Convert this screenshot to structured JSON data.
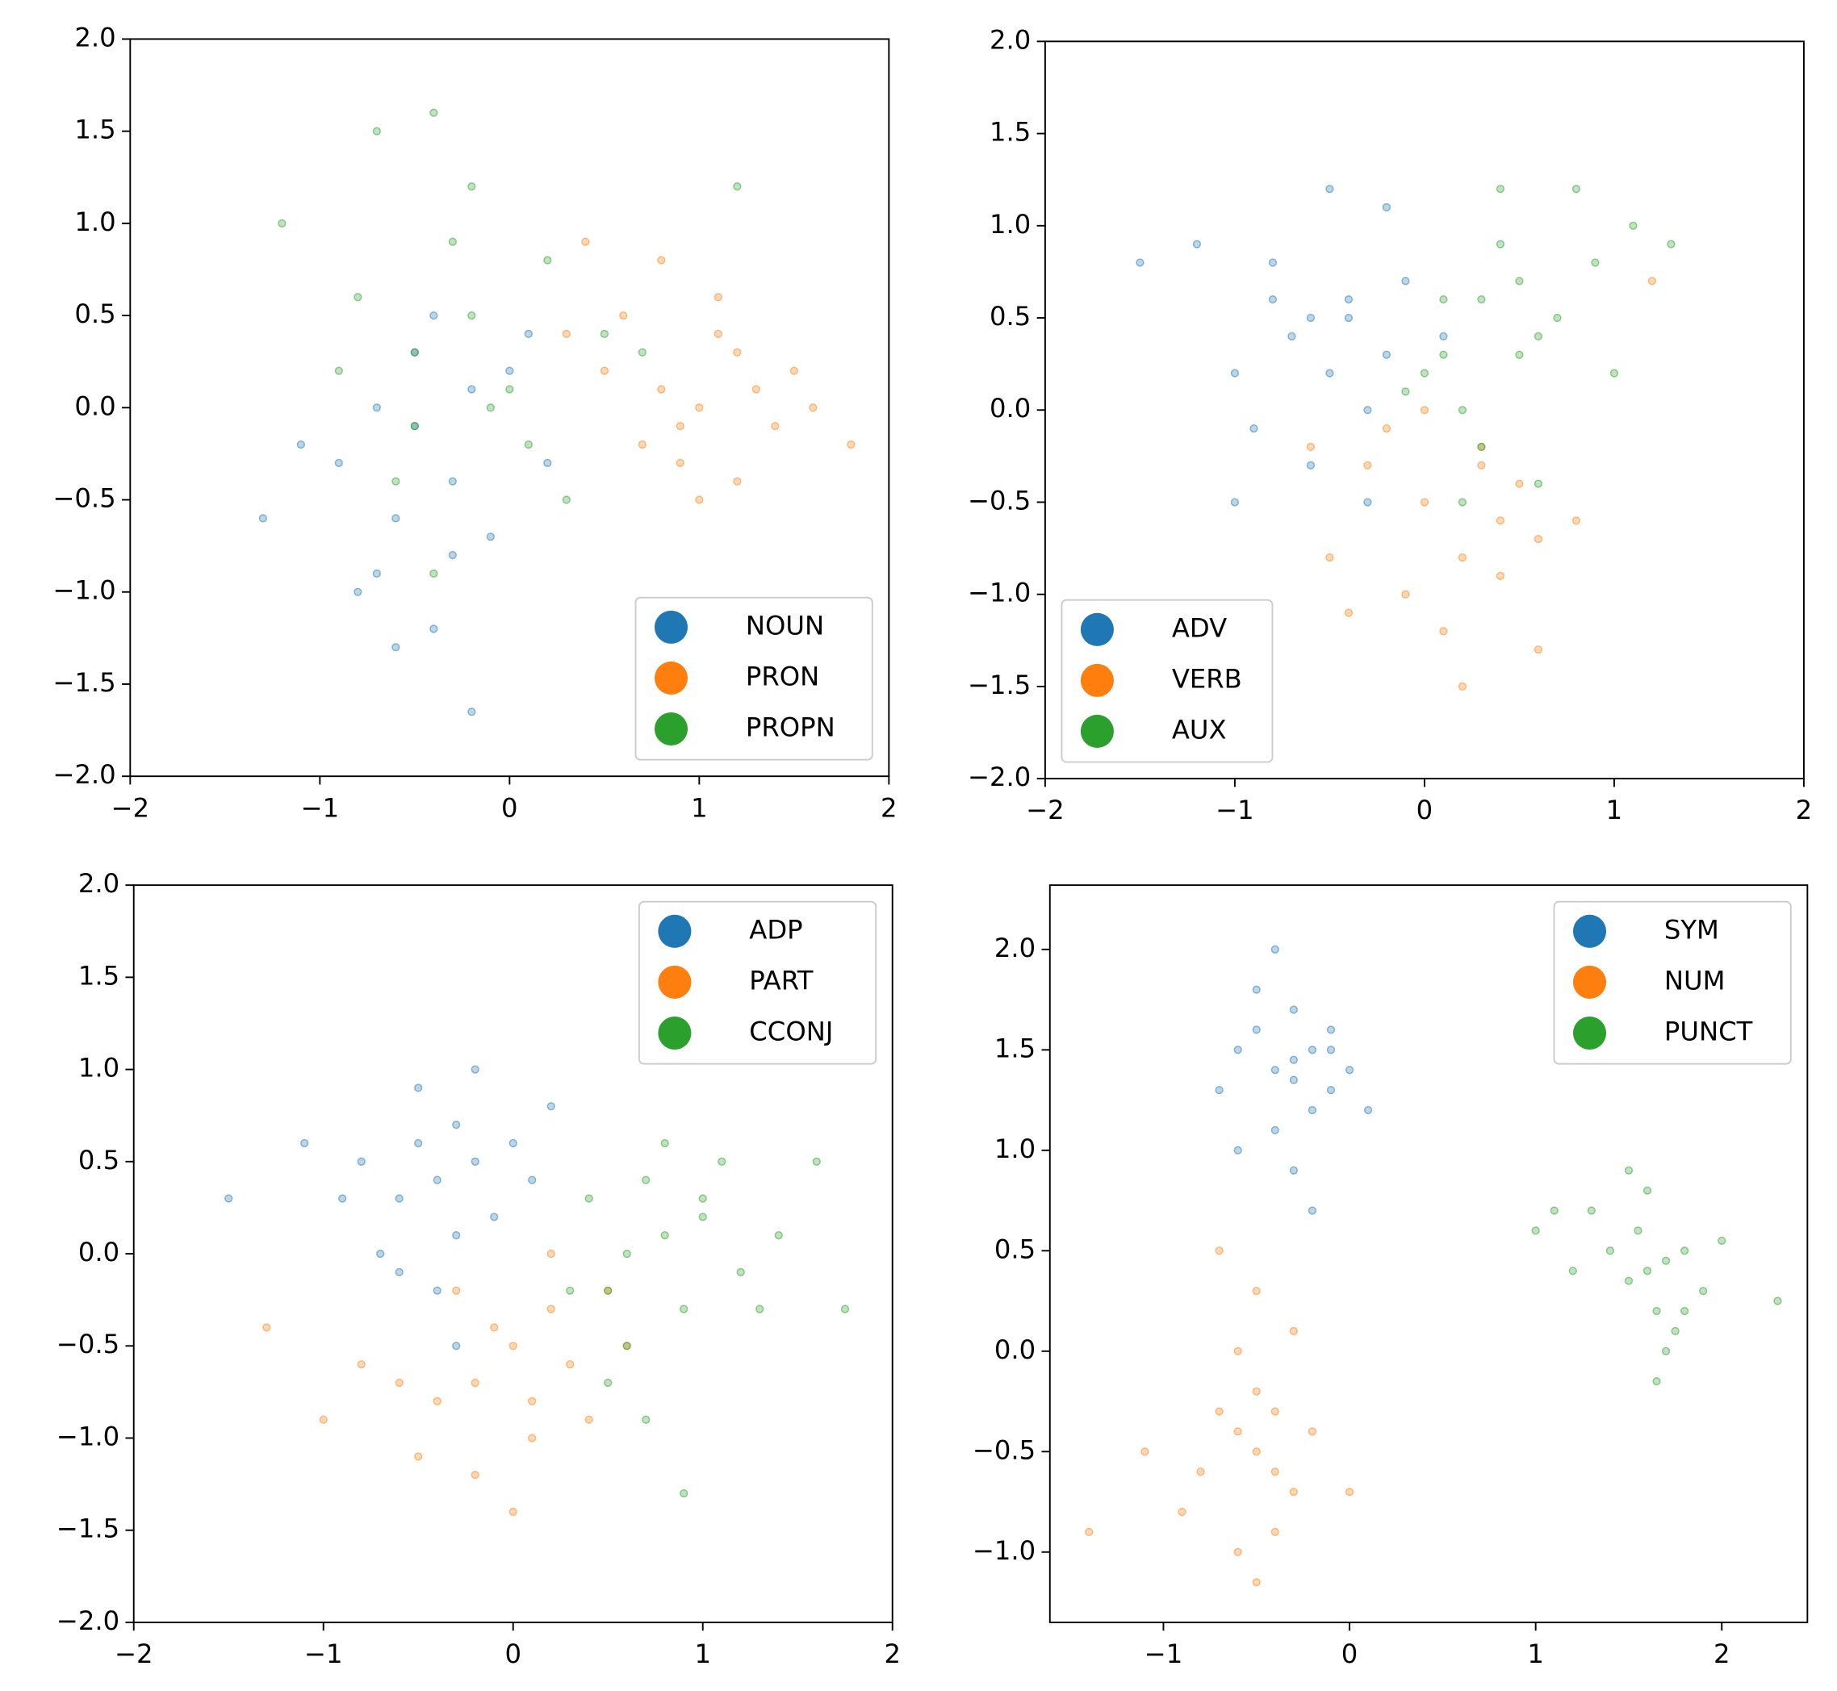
{
  "chart_data": [
    {
      "type": "scatter",
      "legend_loc": "lower right",
      "xlim": [
        -2,
        2
      ],
      "ylim": [
        -2,
        2
      ],
      "xticks": [
        {
          "value": -2,
          "label": "−2"
        },
        {
          "value": -1,
          "label": "−1"
        },
        0,
        1,
        2
      ],
      "yticks": [
        {
          "value": -2,
          "label": "−2.0"
        },
        {
          "value": -1.5,
          "label": "−1.5"
        },
        {
          "value": -1,
          "label": "−1.0"
        },
        {
          "value": -0.5,
          "label": "−0.5"
        },
        {
          "value": 0,
          "label": "0.0"
        },
        0.5,
        {
          "value": 1,
          "label": "1.0"
        },
        1.5,
        {
          "value": 2,
          "label": "2.0"
        }
      ],
      "series": [
        {
          "name": "NOUN",
          "color": "#1f77b4",
          "x": [
            -0.9,
            -0.6,
            -0.4,
            -0.2,
            -0.7,
            -0.3,
            0.0,
            -0.5,
            -1.1,
            -0.8,
            -0.1,
            -0.4,
            -0.6,
            0.2,
            -0.3,
            -1.3,
            -0.5,
            -0.2,
            0.1,
            -0.7
          ],
          "values": [
            -0.3,
            -0.6,
            -1.2,
            0.1,
            -0.9,
            -0.4,
            0.2,
            0.3,
            -0.2,
            -1.0,
            -0.7,
            0.5,
            -1.3,
            -0.3,
            -0.8,
            -0.6,
            -0.1,
            -1.65,
            0.4,
            0.0
          ]
        },
        {
          "name": "PRON",
          "color": "#ff7f0e",
          "x": [
            0.5,
            0.8,
            1.0,
            1.2,
            1.4,
            0.9,
            0.6,
            1.1,
            1.3,
            0.7,
            1.6,
            1.8,
            0.4,
            1.0,
            0.8,
            1.2,
            0.3,
            1.5,
            0.9,
            1.1
          ],
          "values": [
            0.2,
            0.1,
            0.0,
            0.3,
            -0.1,
            -0.3,
            0.5,
            0.6,
            0.1,
            -0.2,
            0.0,
            -0.2,
            0.9,
            -0.5,
            0.8,
            -0.4,
            0.4,
            0.2,
            -0.1,
            0.4
          ]
        },
        {
          "name": "PROPN",
          "color": "#2ca02c",
          "x": [
            -0.5,
            -0.2,
            0.0,
            0.2,
            -0.8,
            -0.4,
            0.1,
            -0.6,
            -1.2,
            -0.3,
            0.5,
            -0.1,
            -0.7,
            0.3,
            -0.9,
            -0.4,
            0.7,
            -0.2,
            -0.5,
            1.2
          ],
          "values": [
            0.3,
            0.5,
            0.1,
            0.8,
            0.6,
            1.6,
            -0.2,
            -0.4,
            1.0,
            0.9,
            0.4,
            0.0,
            1.5,
            -0.5,
            0.2,
            -0.9,
            0.3,
            1.2,
            -0.1,
            1.2
          ]
        }
      ]
    },
    {
      "type": "scatter",
      "legend_loc": "lower left",
      "xlim": [
        -2,
        2
      ],
      "ylim": [
        -2,
        2
      ],
      "xticks": [
        {
          "value": -2,
          "label": "−2"
        },
        {
          "value": -1,
          "label": "−1"
        },
        0,
        1,
        2
      ],
      "yticks": [
        {
          "value": -2,
          "label": "−2.0"
        },
        {
          "value": -1.5,
          "label": "−1.5"
        },
        {
          "value": -1,
          "label": "−1.0"
        },
        {
          "value": -0.5,
          "label": "−0.5"
        },
        {
          "value": 0,
          "label": "0.0"
        },
        0.5,
        {
          "value": 1,
          "label": "1.0"
        },
        1.5,
        {
          "value": 2,
          "label": "2.0"
        }
      ],
      "series": [
        {
          "name": "ADV",
          "color": "#1f77b4",
          "x": [
            -0.6,
            -0.4,
            -0.2,
            -0.8,
            -1.0,
            -0.5,
            -0.3,
            -0.7,
            -0.1,
            -1.2,
            -0.9,
            -0.4,
            -0.6,
            0.1,
            -1.5,
            -0.2,
            -0.8,
            -0.5,
            -0.3,
            -1.0
          ],
          "values": [
            0.5,
            0.6,
            0.3,
            0.8,
            0.2,
            1.2,
            0.0,
            0.4,
            0.7,
            0.9,
            -0.1,
            0.5,
            -0.3,
            0.4,
            0.8,
            1.1,
            0.6,
            0.2,
            -0.5,
            -0.5
          ]
        },
        {
          "name": "VERB",
          "color": "#ff7f0e",
          "x": [
            0.0,
            0.2,
            -0.3,
            0.4,
            -0.1,
            0.3,
            0.6,
            -0.5,
            0.1,
            0.5,
            -0.2,
            0.8,
            -0.4,
            0.2,
            0.0,
            0.4,
            1.2,
            0.6,
            -0.6,
            0.3
          ],
          "values": [
            -0.5,
            -0.8,
            -0.3,
            -0.6,
            -1.0,
            -0.2,
            -0.7,
            -0.8,
            -1.2,
            -0.4,
            -0.1,
            -0.6,
            -1.1,
            -1.5,
            0.0,
            -0.9,
            0.7,
            -1.3,
            -0.2,
            -0.3
          ]
        },
        {
          "name": "AUX",
          "color": "#2ca02c",
          "x": [
            0.3,
            0.5,
            0.1,
            0.7,
            0.2,
            0.4,
            0.9,
            0.0,
            0.6,
            1.1,
            0.3,
            0.8,
            -0.1,
            1.3,
            0.5,
            0.2,
            1.0,
            0.4,
            0.6,
            0.1
          ],
          "values": [
            0.6,
            0.7,
            0.3,
            0.5,
            0.0,
            0.9,
            0.8,
            0.2,
            0.4,
            1.0,
            -0.2,
            1.2,
            0.1,
            0.9,
            0.3,
            -0.5,
            0.2,
            1.2,
            -0.4,
            0.6
          ]
        }
      ]
    },
    {
      "type": "scatter",
      "legend_loc": "upper right",
      "xlim": [
        -2,
        2
      ],
      "ylim": [
        -2,
        2
      ],
      "xticks": [
        {
          "value": -2,
          "label": "−2"
        },
        {
          "value": -1,
          "label": "−1"
        },
        0,
        1,
        2
      ],
      "yticks": [
        {
          "value": -2,
          "label": "−2.0"
        },
        {
          "value": -1.5,
          "label": "−1.5"
        },
        {
          "value": -1,
          "label": "−1.0"
        },
        {
          "value": -0.5,
          "label": "−0.5"
        },
        {
          "value": 0,
          "label": "0.0"
        },
        0.5,
        {
          "value": 1,
          "label": "1.0"
        },
        1.5,
        {
          "value": 2,
          "label": "2.0"
        }
      ],
      "series": [
        {
          "name": "ADP",
          "color": "#1f77b4",
          "x": [
            -0.4,
            -0.2,
            -0.6,
            -0.3,
            -0.1,
            -0.5,
            -0.8,
            0.0,
            -0.3,
            -0.7,
            -0.4,
            0.2,
            -0.9,
            -0.2,
            -1.5,
            -0.5,
            0.1,
            -0.6,
            -0.3,
            -1.1
          ],
          "values": [
            0.4,
            0.5,
            0.3,
            0.7,
            0.2,
            0.9,
            0.5,
            0.6,
            0.1,
            0.0,
            -0.2,
            0.8,
            0.3,
            1.0,
            0.3,
            0.6,
            0.4,
            -0.1,
            -0.5,
            0.6
          ]
        },
        {
          "name": "PART",
          "color": "#ff7f0e",
          "x": [
            0.0,
            -0.2,
            0.2,
            -0.4,
            0.1,
            -0.1,
            0.3,
            -0.5,
            -0.3,
            0.4,
            -0.6,
            0.0,
            0.5,
            -1.0,
            -0.2,
            0.2,
            0.6,
            -0.8,
            0.1,
            -1.3
          ],
          "values": [
            -0.5,
            -0.7,
            -0.3,
            -0.8,
            -1.0,
            -0.4,
            -0.6,
            -1.1,
            -0.2,
            -0.9,
            -0.7,
            -1.4,
            -0.2,
            -0.9,
            -1.2,
            0.0,
            -0.5,
            -0.6,
            -0.8,
            -0.4
          ]
        },
        {
          "name": "CCONJ",
          "color": "#2ca02c",
          "x": [
            0.6,
            0.8,
            0.5,
            1.0,
            0.7,
            0.4,
            1.2,
            0.9,
            0.6,
            1.4,
            0.3,
            1.1,
            0.8,
            1.6,
            0.5,
            0.7,
            1.3,
            1.0,
            1.75,
            0.9
          ],
          "values": [
            0.0,
            0.1,
            -0.2,
            0.2,
            0.4,
            0.3,
            -0.1,
            -0.3,
            -0.5,
            0.1,
            -0.2,
            0.5,
            0.6,
            0.5,
            -0.7,
            -0.9,
            -0.3,
            0.3,
            -0.3,
            -1.3
          ]
        }
      ]
    },
    {
      "type": "scatter",
      "legend_loc": "upper right",
      "xlim": [
        -1.61,
        2.46
      ],
      "ylim": [
        -1.35,
        2.32
      ],
      "xticks": [
        {
          "value": -1,
          "label": "−1"
        },
        0,
        1,
        2
      ],
      "yticks": [
        {
          "value": -1,
          "label": "−1.0"
        },
        {
          "value": -0.5,
          "label": "−0.5"
        },
        {
          "value": 0,
          "label": "0.0"
        },
        0.5,
        {
          "value": 1,
          "label": "1.0"
        },
        1.5,
        {
          "value": 2,
          "label": "2.0"
        }
      ],
      "series": [
        {
          "name": "SYM",
          "color": "#1f77b4",
          "x": [
            -0.3,
            -0.2,
            -0.4,
            -0.1,
            -0.5,
            -0.3,
            -0.2,
            -0.6,
            0.0,
            -0.4,
            -0.3,
            -0.1,
            -0.7,
            -0.5,
            -0.2,
            0.1,
            -0.4,
            -0.3,
            -0.6,
            -0.1
          ],
          "values": [
            1.45,
            1.5,
            1.4,
            1.3,
            1.6,
            1.7,
            1.2,
            1.5,
            1.4,
            1.1,
            0.9,
            1.6,
            1.3,
            1.8,
            0.7,
            1.2,
            2.0,
            1.35,
            1.0,
            1.5
          ]
        },
        {
          "name": "NUM",
          "color": "#ff7f0e",
          "x": [
            -0.5,
            -0.6,
            -0.4,
            -0.7,
            -0.3,
            -0.5,
            -0.8,
            -0.4,
            -0.6,
            -0.2,
            -0.9,
            -0.5,
            -1.1,
            -0.3,
            -0.6,
            -1.4,
            -0.4,
            -0.7,
            0.0,
            -0.5
          ],
          "values": [
            -0.5,
            -0.4,
            -0.6,
            -0.3,
            -0.7,
            -0.2,
            -0.6,
            -0.9,
            0.0,
            -0.4,
            -0.8,
            0.3,
            -0.5,
            0.1,
            -1.0,
            -0.9,
            -0.3,
            0.5,
            -0.7,
            -1.15
          ]
        },
        {
          "name": "PUNCT",
          "color": "#2ca02c",
          "x": [
            1.6,
            1.7,
            1.5,
            1.8,
            1.65,
            1.55,
            1.9,
            1.4,
            1.75,
            1.6,
            1.3,
            2.0,
            1.7,
            1.2,
            1.5,
            1.8,
            1.1,
            1.65,
            2.3,
            1.0
          ],
          "values": [
            0.4,
            0.45,
            0.35,
            0.5,
            0.2,
            0.6,
            0.3,
            0.5,
            0.1,
            0.8,
            0.7,
            0.55,
            0.0,
            0.4,
            0.9,
            0.2,
            0.7,
            -0.15,
            0.25,
            0.6
          ]
        }
      ]
    }
  ]
}
